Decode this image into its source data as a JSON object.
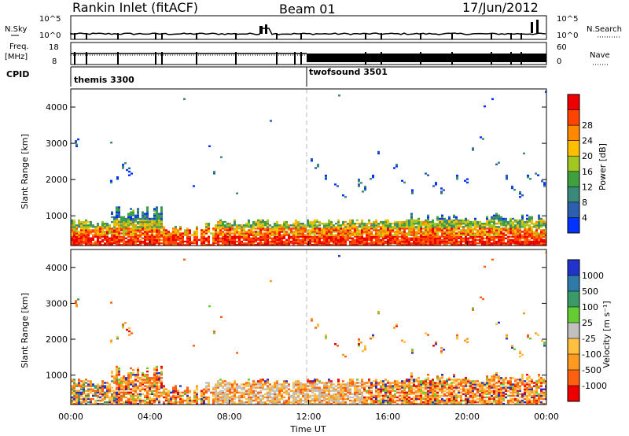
{
  "header": {
    "site": "Rankin Inlet (fitACF)",
    "beam": "Beam 01",
    "date": "17/Jun/2012"
  },
  "strip_labels": {
    "nsky": "N.Sky",
    "freq": "Freq.",
    "freq_unit": "[MHz]",
    "cpid": "CPID",
    "nsearch": "N.Search",
    "nave": "Nave",
    "nsky_ticks": [
      "10^5",
      "10^0"
    ],
    "freq_ticks": [
      "18",
      "8"
    ],
    "nsearch_ticks": [
      "10^5",
      "10^0"
    ],
    "nave_ticks": [
      "60",
      "0"
    ]
  },
  "cpid_programs": [
    {
      "name": "themis 3300",
      "start_hour": 0
    },
    {
      "name": "twofsound 3501",
      "start_hour": 12
    }
  ],
  "colors": {
    "power_scale": [
      "#0033ff",
      "#2c5fb0",
      "#3a8a7a",
      "#40a040",
      "#a0c820",
      "#ffbf00",
      "#ff8800",
      "#ff4400",
      "#ee0000"
    ],
    "velocity_scale": [
      "#2233cc",
      "#2e7aa8",
      "#3a9a6a",
      "#66cc33",
      "#c0c0c0",
      "#ffc040",
      "#ff9a20",
      "#ff6010",
      "#ee0000"
    ]
  },
  "chart_data": [
    {
      "type": "heatmap",
      "name": "power",
      "xlabel": "",
      "ylabel": "Slant Range [km]",
      "xlim": [
        0,
        24
      ],
      "ylim": [
        180,
        4500
      ],
      "yticks": [
        "1000",
        "2000",
        "3000",
        "4000"
      ],
      "colorbar_label": "Power [dB]",
      "colorbar_ticks": [
        "4",
        "8",
        "12",
        "16",
        "20",
        "24",
        "28"
      ],
      "colorbar_range": [
        0,
        32
      ]
    },
    {
      "type": "heatmap",
      "name": "velocity",
      "xlabel": "Time UT",
      "ylabel": "Slant Range [km]",
      "xlim": [
        0,
        24
      ],
      "ylim": [
        180,
        4500
      ],
      "yticks": [
        "1000",
        "2000",
        "3000",
        "4000"
      ],
      "xticks": [
        "00:00",
        "04:00",
        "08:00",
        "12:00",
        "16:00",
        "20:00",
        "00:00"
      ],
      "colorbar_label": "Velocity [m s⁻¹]",
      "colorbar_ticks": [
        "1000",
        "500",
        "100",
        "25",
        "-25",
        "-100",
        "-500",
        "-1000"
      ]
    }
  ]
}
